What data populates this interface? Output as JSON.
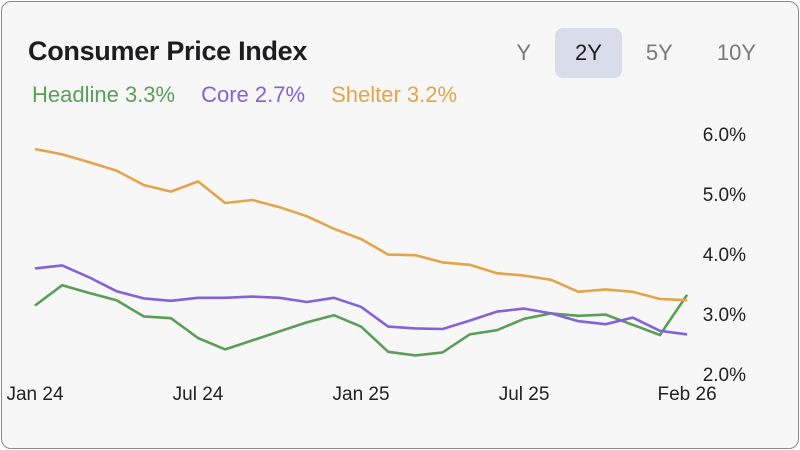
{
  "header": {
    "title": "Consumer Price Index",
    "ranges": [
      {
        "label": "Y",
        "active": false
      },
      {
        "label": "2Y",
        "active": true
      },
      {
        "label": "5Y",
        "active": false
      },
      {
        "label": "10Y",
        "active": false
      }
    ]
  },
  "legend": [
    {
      "label": "Headline 3.3%",
      "color": "#5a9e57"
    },
    {
      "label": "Core 2.7%",
      "color": "#8462d8"
    },
    {
      "label": "Shelter 3.2%",
      "color": "#e3a44a"
    }
  ],
  "chart_data": {
    "type": "line",
    "x_tick_labels": [
      "Jan 24",
      "Jul 24",
      "Jan 25",
      "Jul 25",
      "Feb 26"
    ],
    "x_tick_indices": [
      0,
      6,
      12,
      18,
      24
    ],
    "y_ticks": [
      2.0,
      3.0,
      4.0,
      5.0,
      6.0
    ],
    "y_tick_labels": [
      "2.0%",
      "3.0%",
      "4.0%",
      "5.0%",
      "6.0%"
    ],
    "ylim": [
      2.0,
      6.0
    ],
    "grid": false,
    "y_axis_side": "right",
    "series": [
      {
        "name": "Headline",
        "color": "#5a9e57",
        "values": [
          3.14,
          3.48,
          3.35,
          3.23,
          2.96,
          2.93,
          2.6,
          2.41,
          2.56,
          2.71,
          2.86,
          2.98,
          2.79,
          2.37,
          2.31,
          2.36,
          2.66,
          2.73,
          2.92,
          3.01,
          2.97,
          2.99,
          2.82,
          2.65,
          3.32
        ]
      },
      {
        "name": "Core",
        "color": "#8462d8",
        "values": [
          3.76,
          3.81,
          3.61,
          3.38,
          3.26,
          3.22,
          3.27,
          3.27,
          3.29,
          3.27,
          3.2,
          3.27,
          3.12,
          2.79,
          2.76,
          2.75,
          2.89,
          3.04,
          3.09,
          3.01,
          2.88,
          2.83,
          2.94,
          2.72,
          2.66
        ]
      },
      {
        "name": "Shelter",
        "color": "#e3a44a",
        "values": [
          5.75,
          5.66,
          5.53,
          5.39,
          5.15,
          5.04,
          5.21,
          4.85,
          4.9,
          4.78,
          4.63,
          4.42,
          4.25,
          3.99,
          3.98,
          3.86,
          3.82,
          3.68,
          3.64,
          3.57,
          3.37,
          3.41,
          3.37,
          3.25,
          3.23
        ]
      }
    ]
  }
}
